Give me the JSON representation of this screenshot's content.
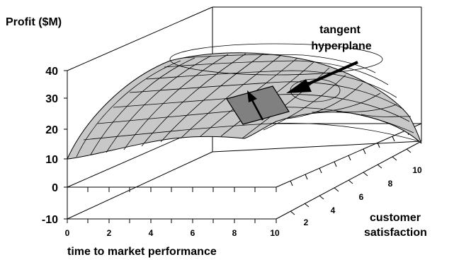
{
  "labels": {
    "z_axis": "Profit ($M)",
    "x_axis": "time to market performance",
    "y_axis_line1": "customer",
    "y_axis_line2": "satisfaction",
    "annotation_line1": "tangent",
    "annotation_line2": "hyperplane"
  },
  "z_ticks": [
    "40",
    "30",
    "20",
    "10",
    "0",
    "-10"
  ],
  "x_ticks": [
    "0",
    "2",
    "4",
    "6",
    "8",
    "10"
  ],
  "y_ticks": [
    "2",
    "4",
    "6",
    "8",
    "10"
  ],
  "colors": {
    "surface": "#c8c8c8",
    "plane": "#808080",
    "lines": "#000000"
  }
}
